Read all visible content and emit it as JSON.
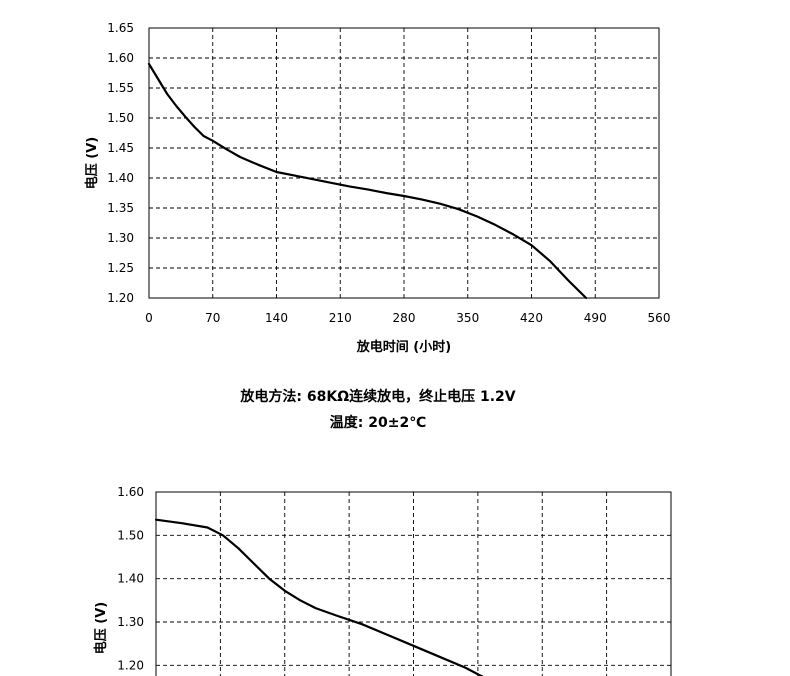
{
  "captions": {
    "line1": "放电方法: 68KΩ连续放电，终止电压 1.2V",
    "line2": "温度: 20±2℃"
  },
  "chart_data": [
    {
      "type": "line",
      "ylabel": "电压 (V)",
      "xlabel": "放电时间 (小时)",
      "xlim": [
        0,
        560
      ],
      "ylim": [
        1.2,
        1.65
      ],
      "x_ticks": [
        "0",
        "70",
        "140",
        "210",
        "280",
        "350",
        "420",
        "490",
        "560"
      ],
      "y_ticks": [
        "1.65",
        "1.60",
        "1.55",
        "1.50",
        "1.45",
        "1.40",
        "1.35",
        "1.30",
        "1.25",
        "1.20"
      ],
      "grid": true,
      "series": [
        {
          "x": [
            0,
            10,
            20,
            30,
            40,
            50,
            60,
            70,
            85,
            100,
            120,
            140,
            160,
            180,
            200,
            220,
            240,
            260,
            280,
            300,
            320,
            340,
            360,
            380,
            400,
            420,
            440,
            460,
            480
          ],
          "y": [
            1.59,
            1.565,
            1.54,
            1.52,
            1.502,
            1.485,
            1.47,
            1.462,
            1.448,
            1.435,
            1.422,
            1.41,
            1.404,
            1.398,
            1.392,
            1.386,
            1.381,
            1.375,
            1.37,
            1.364,
            1.357,
            1.348,
            1.336,
            1.322,
            1.306,
            1.288,
            1.262,
            1.23,
            1.2
          ]
        }
      ]
    },
    {
      "type": "line",
      "ylabel": "电压 (V)",
      "ylim": [
        1.15,
        1.6
      ],
      "y_ticks": [
        "1.60",
        "1.50",
        "1.40",
        "1.30",
        "1.20"
      ],
      "grid": true,
      "series": [
        {
          "x": [
            0,
            0.05,
            0.1,
            0.13,
            0.16,
            0.19,
            0.22,
            0.25,
            0.28,
            0.31,
            0.35,
            0.4,
            0.45,
            0.5,
            0.55,
            0.6,
            0.64
          ],
          "y": [
            1.536,
            1.528,
            1.518,
            1.5,
            1.47,
            1.435,
            1.4,
            1.372,
            1.35,
            1.332,
            1.315,
            1.295,
            1.27,
            1.245,
            1.22,
            1.195,
            1.17
          ]
        }
      ]
    }
  ]
}
